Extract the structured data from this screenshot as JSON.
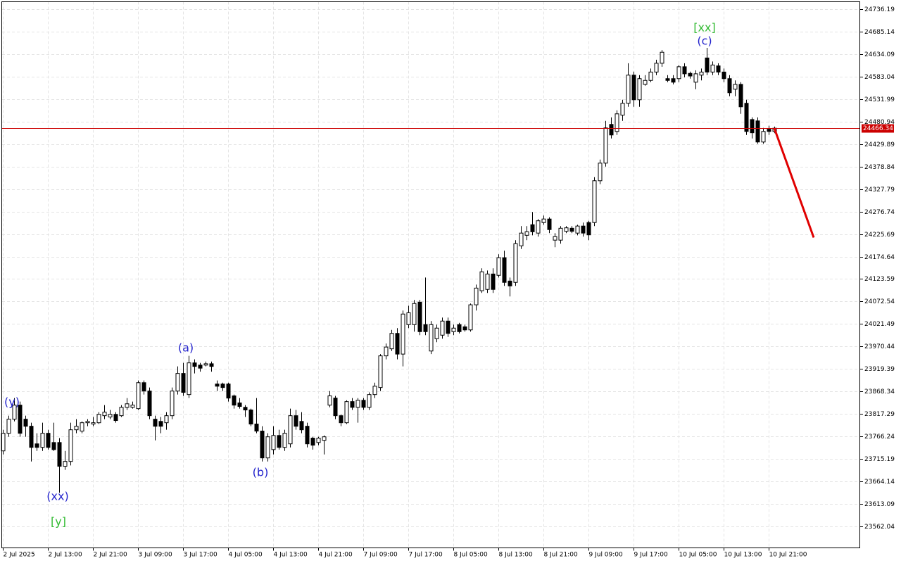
{
  "chart_data": {
    "type": "candlestick",
    "categories": [
      "2 Jul 2025",
      null,
      null,
      null,
      null,
      null,
      null,
      null,
      "2 Jul 13:00",
      null,
      null,
      null,
      null,
      null,
      null,
      null,
      "2 Jul 21:00",
      null,
      null,
      null,
      null,
      null,
      null,
      null,
      "3 Jul 09:00",
      null,
      null,
      null,
      null,
      null,
      null,
      null,
      "3 Jul 17:00",
      null,
      null,
      null,
      null,
      null,
      null,
      null,
      "4 Jul 05:00",
      null,
      null,
      null,
      null,
      null,
      null,
      null,
      "4 Jul 13:00",
      null,
      null,
      null,
      null,
      null,
      null,
      null,
      "4 Jul 21:00",
      null,
      null,
      null,
      null,
      null,
      null,
      null,
      "7 Jul 09:00",
      null,
      null,
      null,
      null,
      null,
      null,
      null,
      "7 Jul 17:00",
      null,
      null,
      null,
      null,
      null,
      null,
      null,
      "8 Jul 05:00",
      null,
      null,
      null,
      null,
      null,
      null,
      null,
      "8 Jul 13:00",
      null,
      null,
      null,
      null,
      null,
      null,
      null,
      "8 Jul 21:00",
      null,
      null,
      null,
      null,
      null,
      null,
      null,
      "9 Jul 09:00",
      null,
      null,
      null,
      null,
      null,
      null,
      null,
      "9 Jul 17:00",
      null,
      null,
      null,
      null,
      null,
      null,
      null,
      "10 Jul 05:00",
      null,
      null,
      null,
      null,
      null,
      null,
      null,
      "10 Jul 13:00",
      null,
      null,
      null,
      null,
      null,
      null,
      null,
      "10 Jul 21:00",
      null
    ],
    "open": [
      23733,
      23773,
      23805,
      23837,
      23805,
      23789,
      23749,
      23741,
      23773,
      23752,
      23752,
      23698,
      23709,
      23781,
      23778,
      23797,
      23794,
      23797,
      23813,
      23810,
      23816,
      23813,
      23832,
      23832,
      23829,
      23888,
      23869,
      23805,
      23800,
      23797,
      23813,
      23869,
      23909,
      23861,
      23933,
      23928,
      23928,
      23931,
      23885,
      23885,
      23885,
      23858,
      23842,
      23832,
      23826,
      23794,
      23778,
      23717,
      23736,
      23768,
      23741,
      23749,
      23813,
      23800,
      23789,
      23762,
      23752,
      23757,
      23837,
      23853,
      23813,
      23797,
      23845,
      23832,
      23848,
      23832,
      23861,
      23877,
      23949,
      23965,
      24000,
      23953,
      24020,
      24020,
      24071,
      24020,
      23960,
      23988,
      23996,
      24028,
      24004,
      24020,
      24015,
      24008,
      24065,
      24097,
      24100,
      24135,
      24132,
      24172,
      24119,
      24116,
      24199,
      24223,
      24247,
      24228,
      24252,
      24260,
      24212,
      24212,
      24232,
      24239,
      24228,
      24244,
      24252,
      24252,
      24347,
      24387,
      24475,
      24459,
      24496,
      24523,
      24587,
      24531,
      24566,
      24575,
      24594,
      24614,
      24579,
      24579,
      24579,
      24606,
      24591,
      24571,
      24587,
      24626,
      24594,
      24608,
      24594,
      24579,
      24555,
      24566,
      24523,
      24486,
      24483,
      24435,
      24464,
      24459
    ],
    "high": [
      23781,
      23813,
      23853,
      23845,
      23813,
      23797,
      23773,
      23797,
      23781,
      23797,
      23762,
      23733,
      23797,
      23805,
      23800,
      23805,
      23810,
      23821,
      23837,
      23826,
      23821,
      23837,
      23853,
      23845,
      23893,
      23893,
      23877,
      23813,
      23810,
      23821,
      23877,
      23925,
      23933,
      23949,
      23941,
      23933,
      23936,
      23936,
      23893,
      23888,
      23888,
      23861,
      23853,
      23837,
      23829,
      23853,
      23789,
      23773,
      23789,
      23781,
      23781,
      23829,
      23826,
      23821,
      23797,
      23765,
      23765,
      23768,
      23869,
      23858,
      23816,
      23848,
      23853,
      23853,
      23853,
      23866,
      23888,
      23953,
      23977,
      24008,
      24012,
      24052,
      24063,
      24076,
      24076,
      24127,
      24028,
      24020,
      24036,
      24036,
      24020,
      24024,
      24020,
      24068,
      24111,
      24148,
      24143,
      24148,
      24180,
      24188,
      24127,
      24212,
      24244,
      24244,
      24276,
      24260,
      24268,
      24264,
      24228,
      24244,
      24244,
      24244,
      24247,
      24252,
      24256,
      24355,
      24395,
      24483,
      24491,
      24507,
      24531,
      24614,
      24595,
      24587,
      24587,
      24602,
      24622,
      24644,
      24587,
      24587,
      24610,
      24614,
      24595,
      24598,
      24602,
      24649,
      24618,
      24614,
      24602,
      24587,
      24575,
      24571,
      24531,
      24491,
      24491,
      24467,
      24472,
      24470
    ],
    "low": [
      23725,
      23765,
      23800,
      23765,
      23765,
      23709,
      23733,
      23733,
      23736,
      23733,
      23638,
      23690,
      23700,
      23773,
      23773,
      23789,
      23789,
      23794,
      23805,
      23805,
      23797,
      23810,
      23826,
      23829,
      23826,
      23861,
      23805,
      23757,
      23773,
      23781,
      23805,
      23861,
      23858,
      23853,
      23909,
      23913,
      23925,
      23913,
      23869,
      23869,
      23845,
      23829,
      23829,
      23810,
      23789,
      23773,
      23709,
      23709,
      23725,
      23736,
      23733,
      23741,
      23781,
      23773,
      23741,
      23736,
      23746,
      23725,
      23832,
      23805,
      23789,
      23794,
      23826,
      23797,
      23826,
      23826,
      23853,
      23869,
      23941,
      23960,
      23941,
      23925,
      24012,
      24004,
      23996,
      23996,
      23953,
      23980,
      23988,
      23992,
      23996,
      24000,
      24004,
      24004,
      24052,
      24092,
      24092,
      24092,
      24127,
      24108,
      24084,
      24108,
      24192,
      24212,
      24223,
      24220,
      24247,
      24228,
      24196,
      24204,
      24228,
      24228,
      24223,
      24220,
      24212,
      24244,
      24339,
      24379,
      24443,
      24451,
      24483,
      24515,
      24515,
      24515,
      24563,
      24571,
      24587,
      24606,
      24571,
      24566,
      24571,
      24582,
      24579,
      24555,
      24575,
      24587,
      24587,
      24587,
      24571,
      24539,
      24539,
      24499,
      24451,
      24443,
      24431,
      24431,
      24451,
      24455
    ],
    "close": [
      23773,
      23805,
      23837,
      23773,
      23789,
      23741,
      23741,
      23773,
      23741,
      23736,
      23698,
      23709,
      23781,
      23789,
      23797,
      23800,
      23797,
      23816,
      23821,
      23816,
      23802,
      23832,
      23840,
      23837,
      23888,
      23869,
      23813,
      23789,
      23789,
      23813,
      23869,
      23909,
      23866,
      23933,
      23925,
      23921,
      23931,
      23925,
      23880,
      23877,
      23853,
      23837,
      23834,
      23826,
      23794,
      23778,
      23717,
      23765,
      23768,
      23741,
      23773,
      23813,
      23789,
      23781,
      23749,
      23746,
      23762,
      23765,
      23858,
      23813,
      23797,
      23845,
      23832,
      23848,
      23832,
      23861,
      23880,
      23949,
      23969,
      24000,
      23953,
      24044,
      24047,
      24068,
      24004,
      24004,
      24020,
      24012,
      24028,
      24000,
      24012,
      24004,
      24008,
      24065,
      24103,
      24140,
      24135,
      24100,
      24172,
      24116,
      24108,
      24204,
      24228,
      24231,
      24231,
      24256,
      24260,
      24236,
      24220,
      24239,
      24240,
      24232,
      24244,
      24228,
      24224,
      24347,
      24387,
      24467,
      24451,
      24499,
      24523,
      24587,
      24531,
      24579,
      24575,
      24594,
      24614,
      24639,
      24575,
      24571,
      24606,
      24590,
      24585,
      24590,
      24594,
      24594,
      24610,
      24594,
      24579,
      24547,
      24566,
      24515,
      24459,
      24456,
      24435,
      24459,
      24459,
      24466.34
    ],
    "up_color": "#ffffff",
    "down_color": "#000000",
    "ylim": [
      23512.59,
      24753.74
    ],
    "yticks": [
      23562.04,
      23613.09,
      23664.14,
      23715.19,
      23766.24,
      23817.29,
      23868.34,
      23919.39,
      23970.44,
      24021.49,
      24072.54,
      24123.59,
      24174.64,
      24225.69,
      24276.74,
      24327.79,
      24378.84,
      24429.89,
      24480.94,
      24531.99,
      24583.04,
      24634.09,
      24685.14,
      24736.19
    ],
    "grid": true,
    "last_price": 24466.34,
    "last_price_color": "#cc0000",
    "forecast": {
      "color": "#e00000",
      "x": [
        137,
        144
      ],
      "values": [
        24466.34,
        24218
      ]
    },
    "annotations": [
      {
        "text": "(y)",
        "color": "#2222cc"
      },
      {
        "text": "(xx)",
        "color": "#2222cc"
      },
      {
        "text": "[y]",
        "color": "#33bb33"
      },
      {
        "text": "(a)",
        "color": "#2222cc"
      },
      {
        "text": "(b)",
        "color": "#2222cc"
      },
      {
        "text": "[xx]",
        "color": "#33bb33"
      },
      {
        "text": "(c)",
        "color": "#2222cc"
      }
    ]
  }
}
